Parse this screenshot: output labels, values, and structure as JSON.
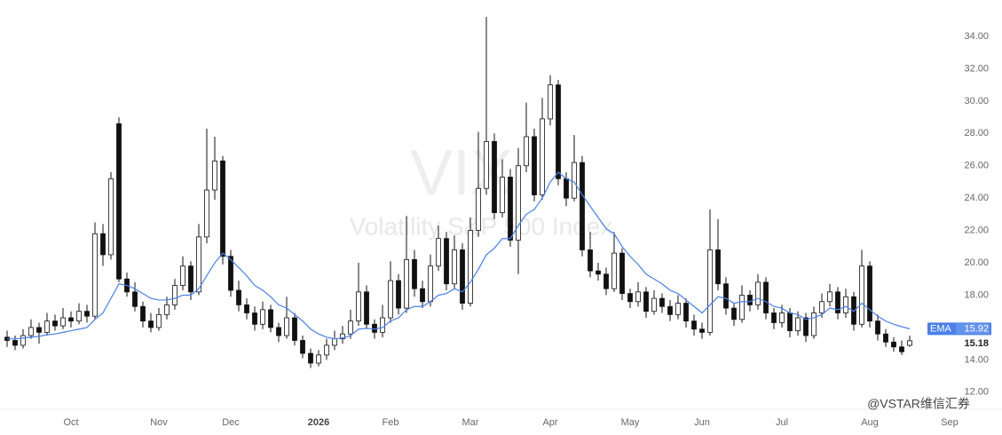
{
  "chart_data": {
    "type": "candlestick",
    "watermark_symbol": "VIX",
    "watermark": "Volatility S&P 500 Index",
    "source_watermark": "@VSTAR维信汇券",
    "categories": [
      null,
      null,
      null,
      null,
      null,
      null,
      null,
      null,
      "Oct",
      null,
      null,
      null,
      null,
      null,
      null,
      null,
      null,
      null,
      null,
      "Nov",
      null,
      null,
      null,
      null,
      null,
      null,
      null,
      null,
      "Dec",
      null,
      null,
      null,
      null,
      null,
      null,
      null,
      null,
      null,
      null,
      "2026",
      null,
      null,
      null,
      null,
      null,
      null,
      null,
      null,
      "Feb",
      null,
      null,
      null,
      null,
      null,
      null,
      null,
      null,
      null,
      "Mar",
      null,
      null,
      null,
      null,
      null,
      null,
      null,
      null,
      null,
      "Apr",
      null,
      null,
      null,
      null,
      null,
      null,
      null,
      null,
      null,
      "May",
      null,
      null,
      null,
      null,
      null,
      null,
      null,
      null,
      "Jun",
      null,
      null,
      null,
      null,
      null,
      null,
      null,
      null,
      null,
      "Jul",
      null,
      null,
      null,
      null,
      null,
      null,
      null,
      null,
      null,
      null,
      "Aug",
      null,
      null,
      null,
      null,
      null,
      null,
      null,
      null,
      null,
      "Sep"
    ],
    "open": [
      15.4,
      15.2,
      14.9,
      15.5,
      16.0,
      15.7,
      16.4,
      16.1,
      16.6,
      16.4,
      17.0,
      16.7,
      21.8,
      20.5,
      28.6,
      19.0,
      18.2,
      17.3,
      16.4,
      16.0,
      16.8,
      17.4,
      18.6,
      19.8,
      18.2,
      21.6,
      24.5,
      26.3,
      20.4,
      18.3,
      17.4,
      16.9,
      16.2,
      17.1,
      16.0,
      15.5,
      16.6,
      15.2,
      14.4,
      13.8,
      14.3,
      14.9,
      15.3,
      15.6,
      16.4,
      18.2,
      16.2,
      15.7,
      16.6,
      18.9,
      17.2,
      20.2,
      18.4,
      17.6,
      19.8,
      21.5,
      18.7,
      20.8,
      17.5,
      22.0,
      24.6,
      27.5,
      23.1,
      25.3,
      21.4,
      26.0,
      27.8,
      24.2,
      28.9,
      31.0,
      25.2,
      24.0,
      26.2,
      20.8,
      19.5,
      19.3,
      18.4,
      20.6,
      18.1,
      17.6,
      18.2,
      17.0,
      17.8,
      17.3,
      16.8,
      17.5,
      16.4,
      15.9,
      15.7,
      20.8,
      18.7,
      17.2,
      16.5,
      18.0,
      17.4,
      18.8,
      16.9,
      16.3,
      16.9,
      15.8,
      16.6,
      15.5,
      16.9,
      17.6,
      18.2,
      16.9,
      17.9,
      16.2,
      19.8,
      16.4,
      15.6,
      15.1,
      14.8,
      14.9,
      null,
      null,
      null,
      null,
      null
    ],
    "high": [
      15.8,
      15.5,
      15.9,
      16.5,
      16.3,
      16.9,
      16.8,
      17.2,
      17.0,
      17.5,
      17.4,
      22.5,
      22.4,
      25.6,
      29.0,
      19.4,
      18.8,
      17.6,
      16.9,
      17.2,
      17.9,
      19.0,
      20.4,
      20.1,
      22.4,
      28.3,
      27.8,
      26.6,
      20.8,
      18.9,
      17.8,
      17.3,
      17.6,
      17.4,
      16.3,
      17.9,
      16.9,
      15.5,
      14.7,
      14.6,
      15.3,
      15.8,
      16.1,
      17.1,
      20.0,
      18.6,
      16.5,
      17.4,
      20.1,
      19.3,
      22.9,
      20.8,
      18.9,
      20.5,
      22.3,
      21.9,
      21.7,
      21.2,
      22.8,
      28.1,
      35.2,
      28.0,
      26.4,
      25.8,
      27.1,
      29.9,
      28.3,
      30.2,
      31.6,
      31.3,
      25.6,
      27.9,
      26.6,
      21.9,
      20.0,
      19.7,
      21.9,
      20.9,
      18.4,
      18.8,
      18.5,
      18.3,
      18.1,
      17.7,
      18.0,
      17.8,
      16.8,
      16.3,
      23.3,
      22.7,
      19.1,
      17.5,
      18.6,
      18.3,
      19.3,
      19.1,
      17.2,
      17.4,
      17.2,
      17.0,
      16.9,
      17.3,
      18.1,
      18.7,
      18.5,
      18.4,
      18.2,
      20.8,
      20.1,
      16.8,
      15.9,
      15.4,
      15.2,
      15.5,
      null,
      null,
      null,
      null,
      null
    ],
    "low": [
      14.8,
      14.6,
      14.7,
      15.3,
      15.0,
      15.5,
      15.8,
      15.9,
      16.0,
      16.2,
      16.3,
      16.5,
      19.8,
      20.2,
      18.8,
      17.9,
      17.0,
      16.0,
      15.7,
      15.8,
      16.5,
      17.1,
      18.3,
      17.7,
      18.0,
      21.2,
      23.9,
      19.9,
      17.9,
      17.0,
      16.5,
      15.8,
      15.9,
      15.7,
      15.1,
      15.3,
      14.9,
      14.1,
      13.5,
      13.6,
      14.0,
      14.6,
      15.0,
      15.3,
      16.1,
      15.9,
      15.3,
      15.4,
      16.3,
      16.8,
      16.9,
      17.9,
      17.2,
      17.3,
      19.5,
      18.3,
      18.4,
      17.1,
      17.3,
      21.6,
      24.2,
      22.7,
      22.8,
      21.0,
      19.3,
      25.6,
      23.8,
      23.9,
      28.5,
      24.8,
      23.5,
      23.8,
      20.4,
      19.1,
      18.9,
      18.0,
      18.2,
      17.7,
      17.2,
      17.3,
      16.6,
      16.8,
      16.9,
      16.4,
      16.5,
      16.0,
      15.5,
      15.3,
      15.5,
      18.3,
      16.8,
      16.1,
      16.3,
      17.0,
      17.1,
      16.5,
      15.9,
      16.0,
      15.4,
      15.5,
      15.1,
      15.3,
      16.6,
      17.3,
      16.5,
      16.6,
      15.8,
      16.0,
      16.0,
      15.2,
      14.8,
      14.5,
      14.3,
      14.8,
      null,
      null,
      null,
      null,
      null
    ],
    "close": [
      15.2,
      14.9,
      15.5,
      16.0,
      15.7,
      16.4,
      16.1,
      16.6,
      16.4,
      17.0,
      16.7,
      21.8,
      20.5,
      25.2,
      19.0,
      18.2,
      17.3,
      16.4,
      16.0,
      16.8,
      17.4,
      18.6,
      19.8,
      18.2,
      21.6,
      24.5,
      26.3,
      20.4,
      18.3,
      17.4,
      16.9,
      16.2,
      17.1,
      16.0,
      15.5,
      16.6,
      15.2,
      14.4,
      13.8,
      14.3,
      14.9,
      15.3,
      15.6,
      16.4,
      18.2,
      16.2,
      15.7,
      16.6,
      18.9,
      17.2,
      20.2,
      18.4,
      17.6,
      19.8,
      21.5,
      18.7,
      20.8,
      17.5,
      22.0,
      24.6,
      27.5,
      23.1,
      25.3,
      21.4,
      26.0,
      27.8,
      24.2,
      28.9,
      31.0,
      25.2,
      24.0,
      26.2,
      20.8,
      19.5,
      19.3,
      18.4,
      20.6,
      18.1,
      17.6,
      18.2,
      17.0,
      17.8,
      17.3,
      16.8,
      17.5,
      16.4,
      15.9,
      15.7,
      20.8,
      18.7,
      17.2,
      16.5,
      18.0,
      17.4,
      18.8,
      16.9,
      16.3,
      16.9,
      15.8,
      16.6,
      15.5,
      16.9,
      17.6,
      18.2,
      16.9,
      17.9,
      16.2,
      19.8,
      16.4,
      15.6,
      15.1,
      14.8,
      14.5,
      15.18,
      null,
      null,
      null,
      null,
      null
    ],
    "color_up": "#ffffff",
    "color_down": "#111111",
    "ema": {
      "name": "EMA",
      "color": "#4a80e8",
      "values": [
        15.3,
        15.3,
        15.35,
        15.4,
        15.45,
        15.55,
        15.6,
        15.7,
        15.8,
        15.9,
        16.0,
        16.5,
        16.9,
        17.8,
        18.7,
        18.6,
        18.4,
        18.1,
        17.8,
        17.7,
        17.7,
        17.8,
        18.0,
        18.0,
        18.4,
        19.2,
        20.0,
        20.6,
        20.2,
        19.7,
        19.2,
        18.6,
        18.3,
        17.9,
        17.4,
        17.2,
        16.8,
        16.4,
        15.9,
        15.6,
        15.4,
        15.3,
        15.35,
        15.5,
        15.9,
        15.95,
        15.9,
        16.0,
        16.4,
        16.6,
        17.1,
        17.3,
        17.3,
        17.6,
        18.0,
        18.1,
        18.4,
        18.2,
        18.8,
        19.6,
        20.5,
        20.9,
        21.5,
        21.5,
        22.3,
        23.0,
        23.3,
        24.0,
        25.0,
        25.6,
        25.2,
        25.0,
        24.2,
        23.5,
        22.8,
        22.1,
        21.8,
        21.0,
        20.4,
        19.9,
        19.3,
        19.0,
        18.7,
        18.3,
        18.1,
        17.7,
        17.3,
        16.9,
        17.4,
        17.9,
        17.8,
        17.5,
        17.6,
        17.6,
        17.8,
        17.6,
        17.3,
        17.2,
        16.9,
        16.8,
        16.5,
        16.6,
        16.8,
        17.2,
        17.1,
        17.3,
        17.0,
        17.5,
        17.1,
        16.7,
        16.4,
        16.2,
        16.05,
        15.92,
        null,
        null,
        null,
        null,
        null
      ]
    },
    "ylim": [
      11.0,
      36.25
    ],
    "yticks": [
      {
        "value": 12,
        "label": "12.00"
      },
      {
        "value": 14,
        "label": "14.00"
      },
      {
        "value": 16,
        "label": "16.00"
      },
      {
        "value": 18,
        "label": "18.00"
      },
      {
        "value": 20,
        "label": "20.00"
      },
      {
        "value": 22,
        "label": "22.00"
      },
      {
        "value": 24,
        "label": "24.00"
      },
      {
        "value": 26,
        "label": "26.00"
      },
      {
        "value": 28,
        "label": "28.00"
      },
      {
        "value": 30,
        "label": "30.00"
      },
      {
        "value": 32,
        "label": "32.00"
      },
      {
        "value": 34,
        "label": "34.00"
      }
    ]
  }
}
